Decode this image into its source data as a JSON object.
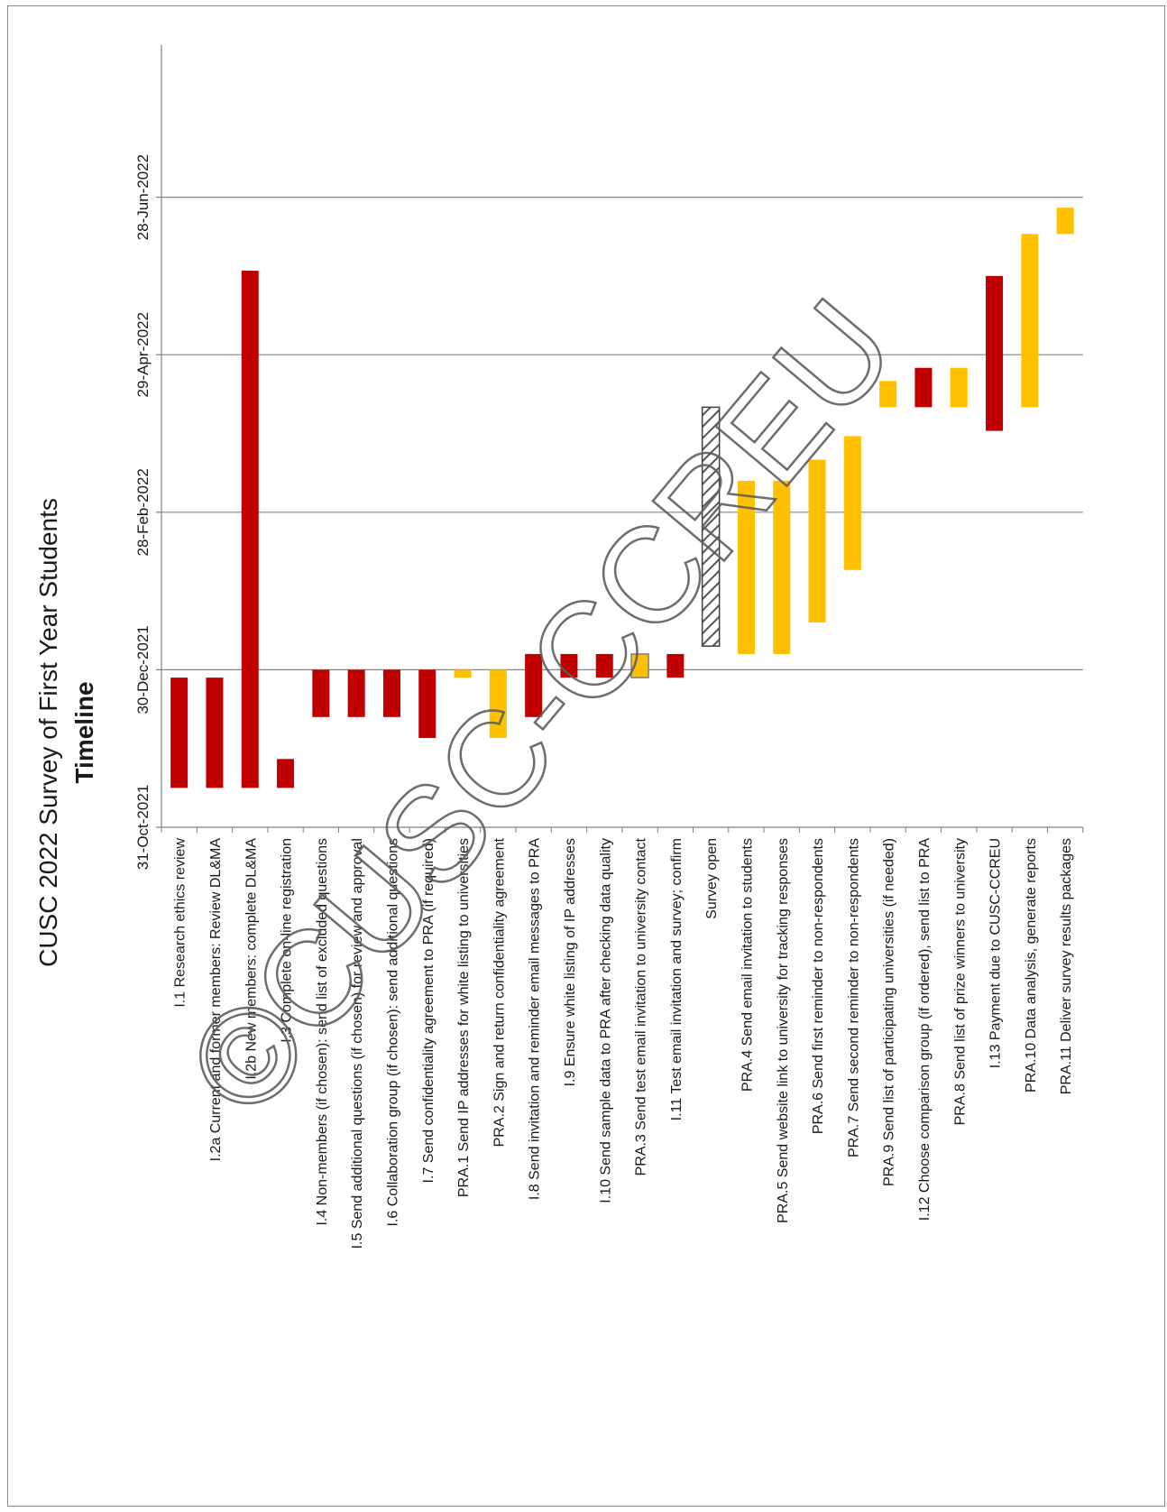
{
  "chart_data": {
    "type": "bar",
    "orientation": "floating-range (chart rotated 90° counter-clockwise)",
    "title": "CUSC 2022 Survey of First Year Students",
    "subtitle": "Timeline",
    "watermark": "©CUSC-CCREU",
    "y_ticks": [
      "31-Oct-2021",
      "30-Dec-2021",
      "28-Feb-2022",
      "29-Apr-2022",
      "28-Jun-2022"
    ],
    "ylim_days_from_31_Oct_2021": [
      0,
      298
    ],
    "grid": true,
    "colors": {
      "institution": "#C00000",
      "pra": "#FFC000",
      "survey": "#ffffff"
    },
    "categories": [
      "I.1 Research ethics review",
      "I.2a Current and former members: Review DL&MA",
      "I.2b New members: complete DL&MA",
      "I.3 Complete on-line registration",
      "I.4 Non-members (if chosen): send list of excluded questions",
      "I.5 Send additional questions (if chosen) for review and approval",
      "I.6 Collaboration group (if chosen): send additional questions",
      "I.7 Send confidentiality agreement to PRA (if required)",
      "PRA.1 Send IP addresses for white listing to universities",
      "PRA.2 Sign and return confidentiality agreement",
      "I.8 Send invitation and reminder email messages to PRA",
      "I.9 Ensure white listing of IP addresses",
      "I.10 Send sample data to PRA after checking data quality",
      "PRA.3 Send test email invitation to university contact",
      "I.11 Test email invitation and survey; confirm",
      "Survey open",
      "PRA.4 Send email invitation to students",
      "PRA.5 Send website link to university for tracking responses",
      "PRA.6 Send first reminder to non-respondents",
      "PRA.7 Send second reminder to non-respondents",
      "PRA.9 Send list of participating universities (if needed)",
      "I.12 Choose comparison group (if ordered), send list to PRA",
      "PRA.8 Send list of prize winners to university",
      "I.13 Payment due to CUSC-CCREU",
      "PRA.10 Data analysis, generate reports",
      "PRA.11 Deliver survey results packages"
    ],
    "tasks": [
      {
        "start": "2021-11-15",
        "end": "2021-12-27",
        "group": "institution"
      },
      {
        "start": "2021-11-15",
        "end": "2021-12-27",
        "group": "institution"
      },
      {
        "start": "2021-11-15",
        "end": "2022-05-31",
        "group": "institution"
      },
      {
        "start": "2021-11-15",
        "end": "2021-11-26",
        "group": "institution"
      },
      {
        "start": "2021-12-12",
        "end": "2021-12-30",
        "group": "institution"
      },
      {
        "start": "2021-12-12",
        "end": "2021-12-30",
        "group": "institution"
      },
      {
        "start": "2021-12-12",
        "end": "2021-12-30",
        "group": "institution"
      },
      {
        "start": "2021-12-04",
        "end": "2021-12-30",
        "group": "institution"
      },
      {
        "start": "2021-12-27",
        "end": "2021-12-30",
        "group": "pra"
      },
      {
        "start": "2021-12-04",
        "end": "2021-12-30",
        "group": "pra"
      },
      {
        "start": "2021-12-12",
        "end": "2022-01-05",
        "group": "institution"
      },
      {
        "start": "2021-12-27",
        "end": "2022-01-05",
        "group": "institution"
      },
      {
        "start": "2021-12-27",
        "end": "2022-01-05",
        "group": "institution"
      },
      {
        "start": "2021-12-27",
        "end": "2022-01-05",
        "group": "pra"
      },
      {
        "start": "2021-12-27",
        "end": "2022-01-05",
        "group": "institution"
      },
      {
        "start": "2022-01-08",
        "end": "2022-04-09",
        "group": "survey"
      },
      {
        "start": "2022-01-05",
        "end": "2022-03-12",
        "group": "pra"
      },
      {
        "start": "2022-01-05",
        "end": "2022-03-12",
        "group": "pra"
      },
      {
        "start": "2022-01-17",
        "end": "2022-03-20",
        "group": "pra"
      },
      {
        "start": "2022-02-06",
        "end": "2022-03-29",
        "group": "pra"
      },
      {
        "start": "2022-04-09",
        "end": "2022-04-19",
        "group": "pra"
      },
      {
        "start": "2022-04-09",
        "end": "2022-04-24",
        "group": "institution"
      },
      {
        "start": "2022-04-09",
        "end": "2022-04-24",
        "group": "pra"
      },
      {
        "start": "2022-03-31",
        "end": "2022-05-29",
        "group": "institution"
      },
      {
        "start": "2022-04-09",
        "end": "2022-06-14",
        "group": "pra"
      },
      {
        "start": "2022-06-14",
        "end": "2022-06-24",
        "group": "pra"
      }
    ]
  }
}
